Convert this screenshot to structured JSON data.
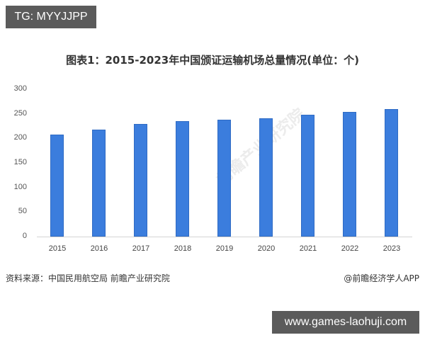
{
  "badges": {
    "top": "TG: MYYJJPP",
    "bottom": "www.games-laohuji.com"
  },
  "watermark": "前瞻产业研究院",
  "footer": {
    "source": "资料来源：中国民用航空局 前瞻产业研究院",
    "credit": "@前瞻经济学人APP"
  },
  "chart_data": {
    "type": "bar",
    "title": "图表1：2015-2023年中国颁证运输机场总量情况(单位：个)",
    "xlabel": "",
    "ylabel": "",
    "categories": [
      "2015",
      "2016",
      "2017",
      "2018",
      "2019",
      "2020",
      "2021",
      "2022",
      "2023"
    ],
    "values": [
      207,
      218,
      229,
      235,
      238,
      241,
      248,
      254,
      259
    ],
    "yticks": [
      "0",
      "50",
      "100",
      "150",
      "200",
      "250",
      "300"
    ],
    "ylim": [
      0,
      300
    ],
    "grid": false,
    "legend": null,
    "bar_color": "#3b7ddd"
  }
}
